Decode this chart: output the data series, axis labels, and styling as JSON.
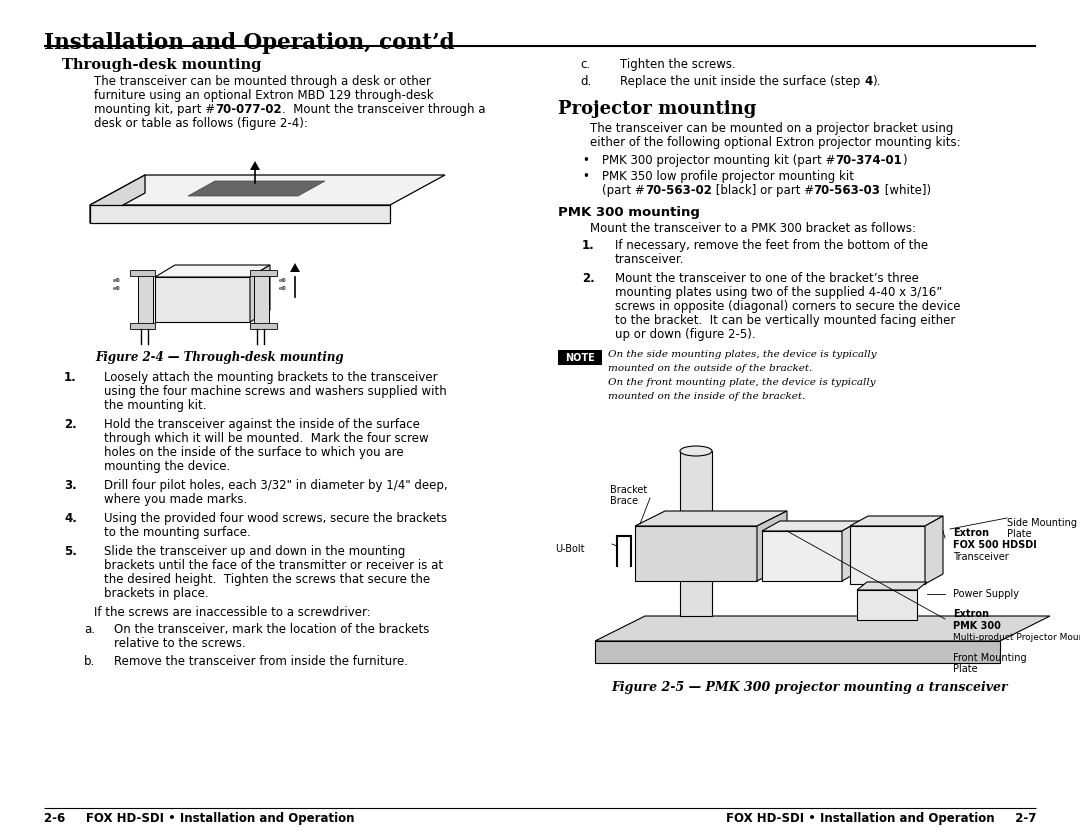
{
  "bg_color": "#ffffff",
  "title": "Installation and Operation, cont’d",
  "section1_heading": "Through-desk mounting",
  "section2_heading": "Projector mounting",
  "pmk_subheading": "PMK 300 mounting",
  "fig_caption1": "Figure 2-4 — Through-desk mounting",
  "fig_caption2": "Figure 2-5 — PMK 300 projector mounting a transceiver",
  "footer_left": "2-6     FOX HD-SDI • Installation and Operation",
  "footer_right": "FOX HD-SDI • Installation and Operation     2-7",
  "left_body": [
    "The transceiver can be mounted through a desk or other",
    "furniture using an optional Extron MBD 129 through-desk",
    "mounting kit, part #|70-077-02|.  Mount the transceiver through a",
    "desk or table as follows (figure 2-4):"
  ],
  "right_c_d": [
    [
      "c.",
      "Tighten the screws."
    ],
    [
      "d.",
      "Replace the unit inside the surface (step |4|)."
    ]
  ],
  "proj_body": [
    "The transceiver can be mounted on a projector bracket using",
    "either of the following optional Extron projector mounting kits:"
  ],
  "proj_bullets": [
    "PMK 300 projector mounting kit (part #|70-374-01|)",
    "PMK 350 low profile projector mounting kit\n    (part #|70-563-02| [black] or part #|70-563-03| [white])"
  ],
  "pmk_body": "Mount the transceiver to a PMK 300 bracket as follows:",
  "pmk_items": [
    [
      "If necessary, remove the feet from the bottom of the",
      "transceiver."
    ],
    [
      "Mount the transceiver to one of the bracket’s three",
      "mounting plates using two of the supplied 4-40 x 3/16”",
      "screws in opposite (diagonal) corners to secure the device",
      "to the bracket.  It can be vertically mounted facing either",
      "up or down (figure 2-5)."
    ]
  ],
  "note_lines": [
    "On the side mounting plates, the device is typically",
    "mounted on the outside of the bracket.",
    "On the front mounting plate, the device is typically",
    "mounted on the inside of the bracket."
  ],
  "left_items": [
    [
      "Loosely attach the mounting brackets to the transceiver",
      "using the four machine screws and washers supplied with",
      "the mounting kit."
    ],
    [
      "Hold the transceiver against the inside of the surface",
      "through which it will be mounted.  Mark the four screw",
      "holes on the inside of the surface to which you are",
      "mounting the device."
    ],
    [
      "Drill four pilot holes, each 3/32\" in diameter by 1/4\" deep,",
      "where you made marks."
    ],
    [
      "Using the provided four wood screws, secure the brackets",
      "to the mounting surface."
    ],
    [
      "Slide the transceiver up and down in the mounting",
      "brackets until the face of the transmitter or receiver is at",
      "the desired height.  Tighten the screws that secure the",
      "brackets in place."
    ]
  ],
  "sub_items": [
    [
      "a.",
      "On the transceiver, mark the location of the brackets",
      "    relative to the screws."
    ],
    [
      "b.",
      "Remove the transceiver from inside the furniture."
    ]
  ]
}
